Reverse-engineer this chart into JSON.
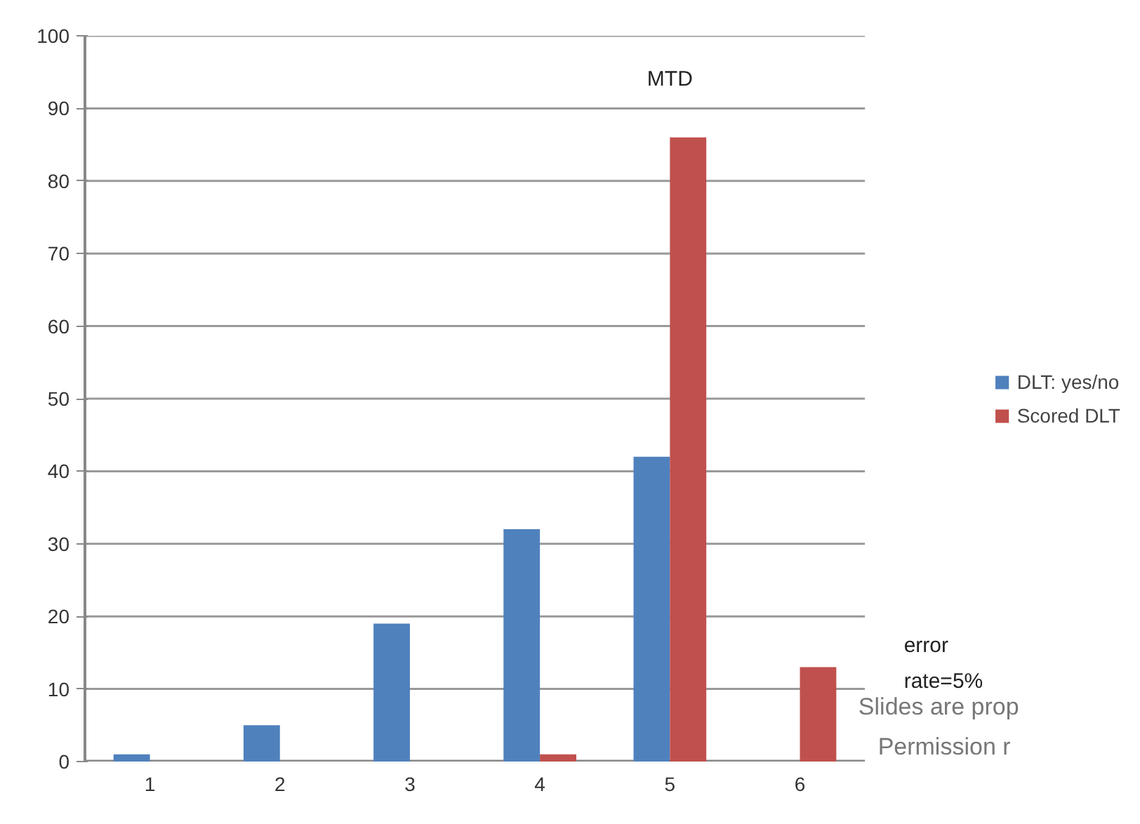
{
  "chart_data": {
    "type": "bar",
    "categories": [
      "1",
      "2",
      "3",
      "4",
      "5",
      "6"
    ],
    "series": [
      {
        "name": "DLT: yes/no",
        "color": "#4f81bd",
        "values": [
          1,
          5,
          19,
          32,
          42,
          0
        ]
      },
      {
        "name": "Scored DLT",
        "color": "#c0504d",
        "values": [
          0,
          0,
          0,
          1,
          86,
          13
        ]
      }
    ],
    "ylim": [
      0,
      100
    ],
    "yticks": [
      0,
      10,
      20,
      30,
      40,
      50,
      60,
      70,
      80,
      90,
      100
    ],
    "grid": "y",
    "legend": "right",
    "annotations": [
      "MTD",
      "error\nrate=5%",
      "Slides are prop\nPermission r"
    ]
  }
}
